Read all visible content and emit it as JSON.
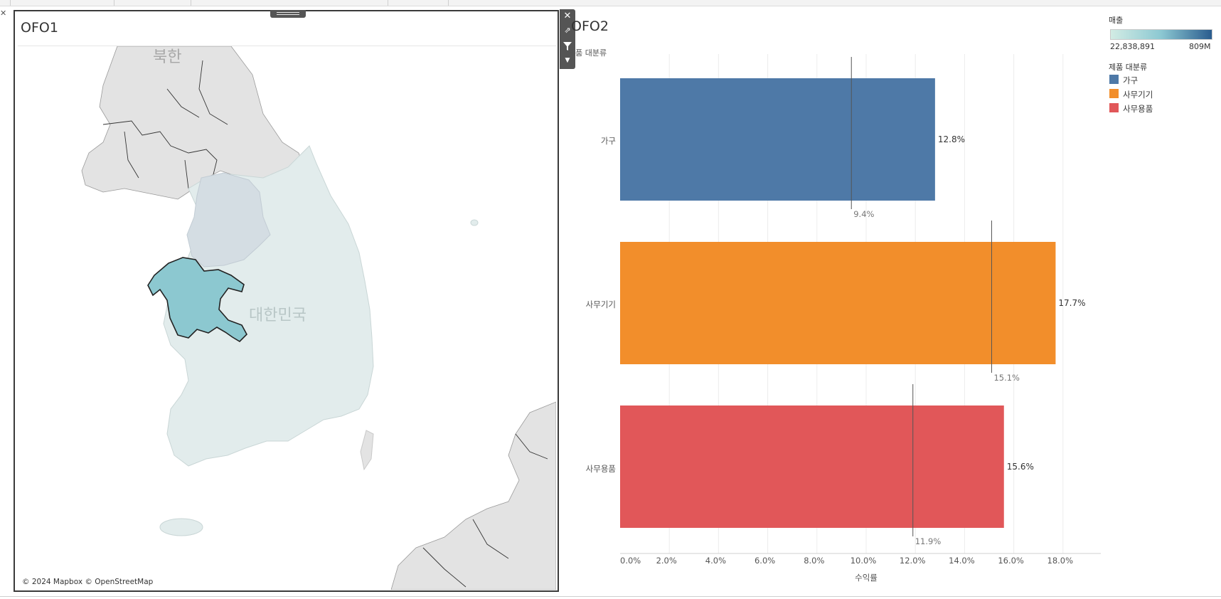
{
  "map_sheet": {
    "title": "OFO1",
    "place_labels": {
      "north": "북한",
      "south": "대한민국"
    },
    "attribution": "© 2024 Mapbox © OpenStreetMap",
    "highlight_color": "#8cc8d0"
  },
  "toolbar": {
    "close_icon": "close-icon",
    "open_icon": "external-link-icon",
    "filter_icon": "filter-icon",
    "more_icon": "chevron-down-icon"
  },
  "bar_sheet": {
    "title": "OFO2",
    "row_header": "제품 대분류"
  },
  "legends": {
    "sales": {
      "title": "매출",
      "min_label": "22,838,891",
      "max_label": "809M"
    },
    "category": {
      "title": "제품 대분류",
      "items": [
        {
          "label": "가구",
          "color": "#4e79a7"
        },
        {
          "label": "사무기기",
          "color": "#f28e2b"
        },
        {
          "label": "사무용품",
          "color": "#e15759"
        }
      ]
    }
  },
  "chart_data": {
    "type": "bar",
    "orientation": "horizontal",
    "categories": [
      "가구",
      "사무기기",
      "사무용품"
    ],
    "values": [
      12.8,
      17.7,
      15.6
    ],
    "value_labels": [
      "12.8%",
      "17.7%",
      "15.6%"
    ],
    "reference_values": [
      9.4,
      15.1,
      11.9
    ],
    "reference_labels": [
      "9.4%",
      "15.1%",
      "11.9%"
    ],
    "colors": [
      "#4e79a7",
      "#f28e2b",
      "#e15759"
    ],
    "xlabel": "수익률",
    "ylabel": "제품 대분류",
    "xlim": [
      0,
      20
    ],
    "ticks": [
      0,
      2,
      4,
      6,
      8,
      10,
      12,
      14,
      16,
      18
    ],
    "tick_labels": [
      "0.0%",
      "2.0%",
      "4.0%",
      "6.0%",
      "8.0%",
      "10.0%",
      "12.0%",
      "14.0%",
      "16.0%",
      "18.0%"
    ],
    "grid": true
  }
}
